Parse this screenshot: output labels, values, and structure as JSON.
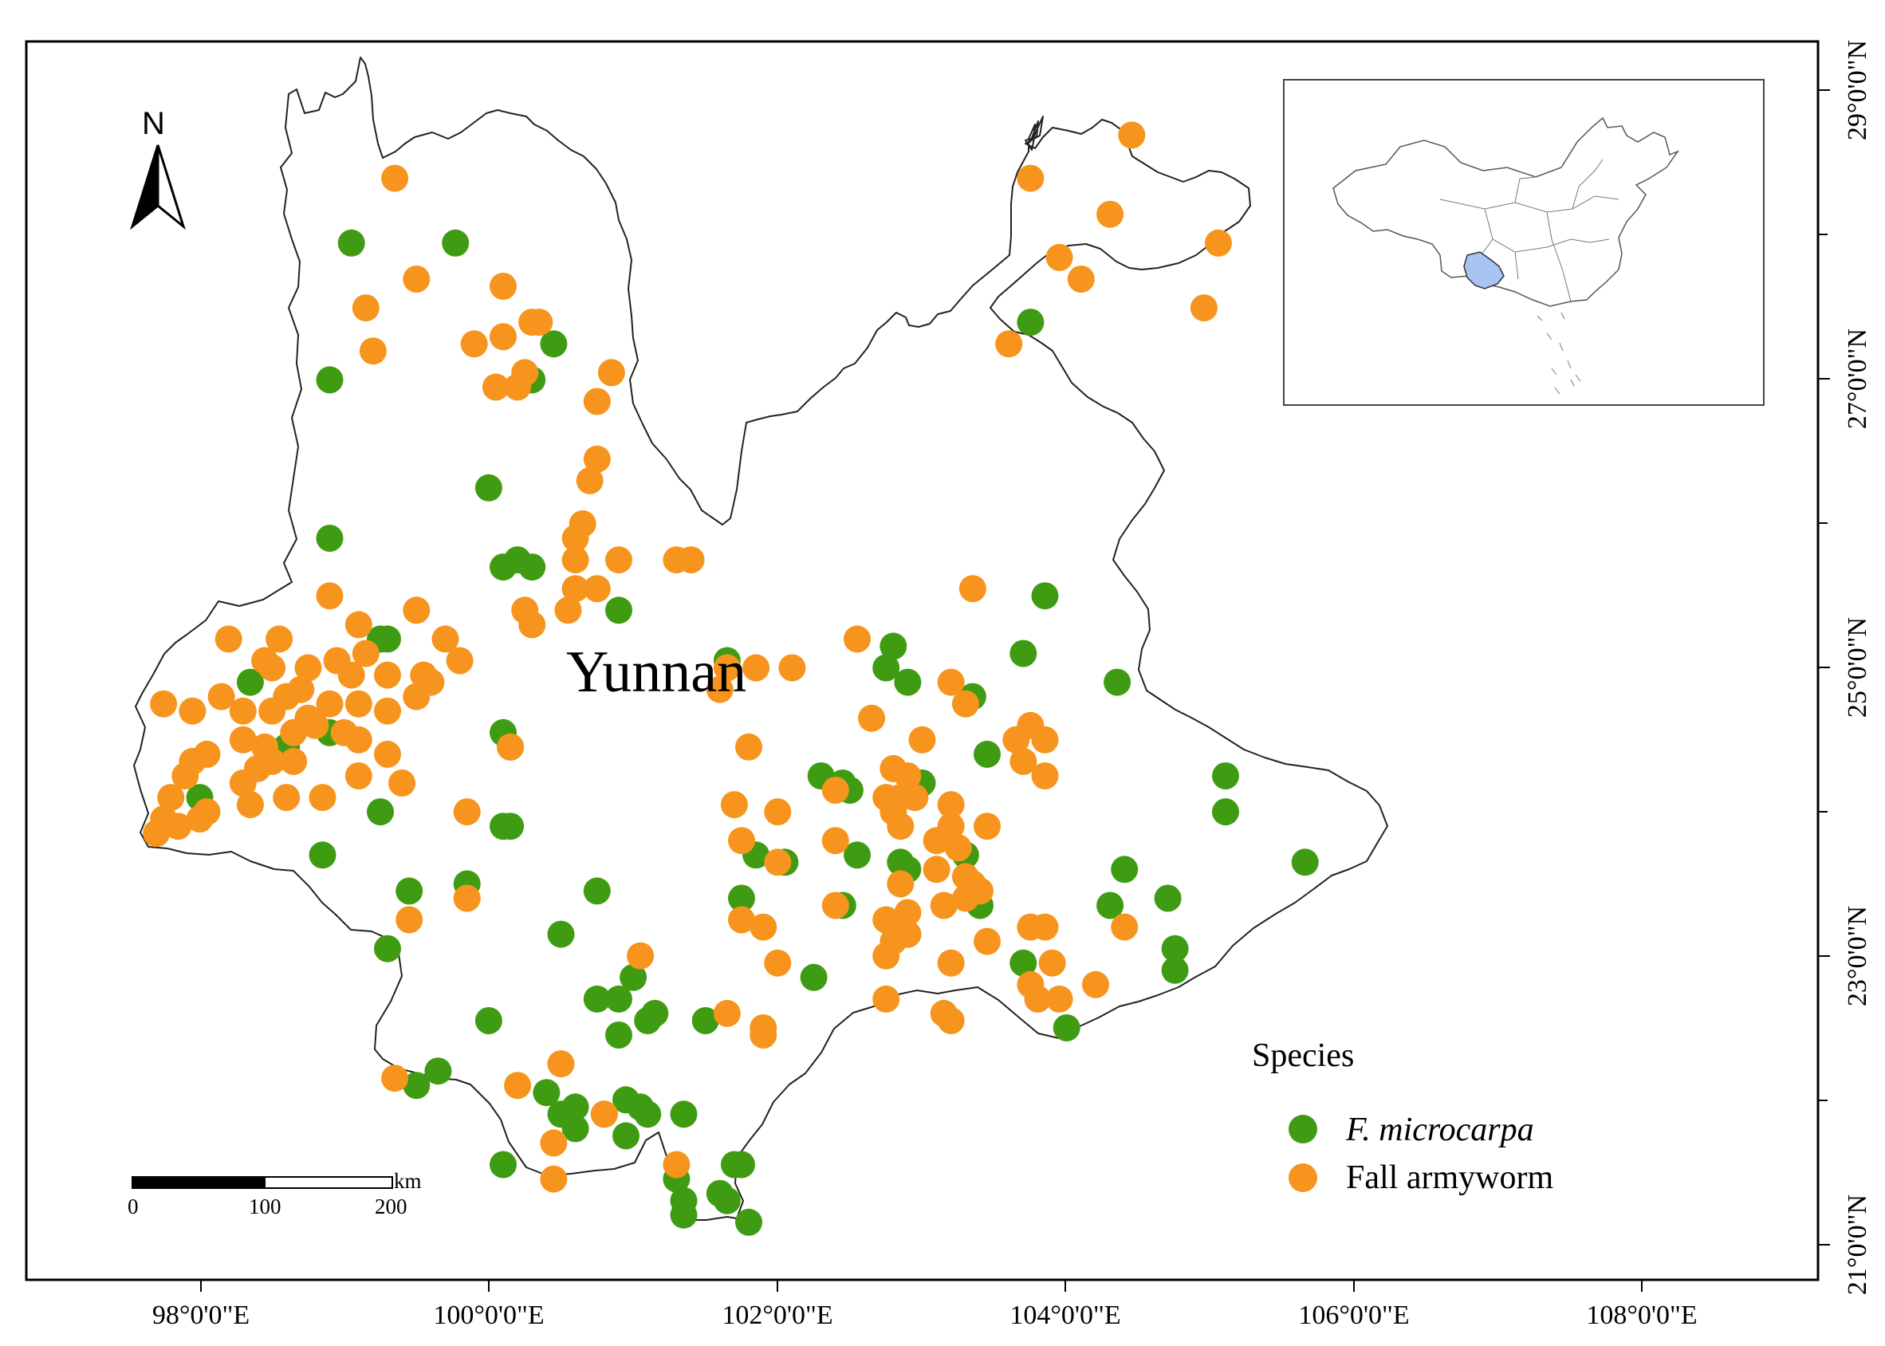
{
  "region_label": "Yunnan",
  "north_label": "N",
  "legend": {
    "title": "Species",
    "items": [
      {
        "label": "F. microcarpa",
        "italic": true,
        "color": "#3f9c12"
      },
      {
        "label": "Fall armyworm",
        "italic": false,
        "color": "#f7941d"
      }
    ]
  },
  "scale_bar": {
    "unit": "km",
    "ticks": [
      "0",
      "100",
      "200"
    ]
  },
  "x_axis_labels": [
    "98°0'0\"E",
    "100°0'0\"E",
    "102°0'0\"E",
    "104°0'0\"E",
    "106°0'0\"E",
    "108°0'0\"E"
  ],
  "y_axis_labels": [
    "29°0'0\"N",
    "27°0'0\"N",
    "25°0'0\"N",
    "23°0'0\"N",
    "21°0'0\"N"
  ],
  "chart_data": {
    "type": "scatter",
    "title": "",
    "xlabel": "",
    "ylabel": "",
    "xlim": [
      96.75,
      109.15
    ],
    "ylim": [
      20.8,
      29.4
    ],
    "series": [
      {
        "name": "F. microcarpa",
        "color": "#3f9c12",
        "points": [
          [
            99.0,
            28.0
          ],
          [
            99.72,
            28.0
          ],
          [
            98.85,
            27.05
          ],
          [
            100.4,
            27.3
          ],
          [
            100.25,
            27.05
          ],
          [
            103.7,
            27.45
          ],
          [
            99.95,
            26.3
          ],
          [
            98.85,
            25.95
          ],
          [
            100.15,
            25.8
          ],
          [
            100.05,
            25.75
          ],
          [
            100.25,
            25.75
          ],
          [
            100.85,
            25.45
          ],
          [
            98.3,
            24.95
          ],
          [
            98.55,
            24.5
          ],
          [
            98.85,
            24.6
          ],
          [
            99.2,
            25.25
          ],
          [
            99.25,
            25.25
          ],
          [
            100.05,
            24.6
          ],
          [
            100.1,
            24.5
          ],
          [
            97.95,
            24.15
          ],
          [
            99.2,
            24.05
          ],
          [
            100.05,
            23.95
          ],
          [
            100.1,
            23.95
          ],
          [
            98.8,
            23.75
          ],
          [
            99.4,
            23.5
          ],
          [
            99.8,
            23.55
          ],
          [
            99.25,
            23.1
          ],
          [
            100.45,
            23.2
          ],
          [
            100.7,
            23.5
          ],
          [
            103.8,
            25.55
          ],
          [
            103.65,
            25.15
          ],
          [
            104.3,
            24.95
          ],
          [
            102.7,
            25.05
          ],
          [
            102.75,
            25.2
          ],
          [
            102.85,
            24.95
          ],
          [
            103.3,
            24.85
          ],
          [
            102.25,
            24.3
          ],
          [
            102.4,
            24.25
          ],
          [
            102.45,
            24.2
          ],
          [
            102.95,
            24.25
          ],
          [
            103.4,
            24.45
          ],
          [
            102.5,
            23.75
          ],
          [
            102.8,
            23.7
          ],
          [
            102.85,
            23.65
          ],
          [
            103.25,
            23.75
          ],
          [
            101.8,
            23.75
          ],
          [
            102.0,
            23.7
          ],
          [
            101.7,
            23.45
          ],
          [
            102.4,
            23.4
          ],
          [
            103.35,
            23.4
          ],
          [
            102.85,
            23.2
          ],
          [
            102.2,
            22.9
          ],
          [
            103.65,
            23.0
          ],
          [
            103.95,
            22.55
          ],
          [
            104.25,
            23.4
          ],
          [
            104.35,
            23.65
          ],
          [
            104.65,
            23.45
          ],
          [
            104.7,
            23.1
          ],
          [
            104.7,
            22.95
          ],
          [
            105.05,
            24.3
          ],
          [
            105.05,
            24.05
          ],
          [
            105.6,
            23.7
          ],
          [
            99.45,
            22.15
          ],
          [
            99.6,
            22.25
          ],
          [
            99.95,
            22.6
          ],
          [
            100.7,
            22.75
          ],
          [
            100.85,
            22.5
          ],
          [
            100.85,
            22.75
          ],
          [
            100.95,
            22.9
          ],
          [
            101.05,
            22.6
          ],
          [
            101.1,
            22.65
          ],
          [
            101.45,
            22.6
          ],
          [
            100.35,
            22.1
          ],
          [
            100.45,
            21.95
          ],
          [
            100.55,
            22.0
          ],
          [
            100.55,
            21.85
          ],
          [
            100.75,
            21.95
          ],
          [
            100.9,
            22.05
          ],
          [
            101.0,
            22.0
          ],
          [
            101.05,
            21.95
          ],
          [
            100.9,
            21.8
          ],
          [
            100.05,
            21.6
          ],
          [
            101.25,
            21.5
          ],
          [
            101.3,
            21.35
          ],
          [
            101.3,
            21.25
          ],
          [
            101.55,
            21.4
          ],
          [
            101.6,
            21.35
          ],
          [
            101.65,
            21.6
          ],
          [
            101.7,
            21.6
          ],
          [
            101.75,
            21.2
          ],
          [
            101.3,
            21.95
          ],
          [
            101.6,
            25.1
          ]
        ]
      },
      {
        "name": "Fall armyworm",
        "color": "#f7941d",
        "points": [
          [
            99.3,
            28.45
          ],
          [
            99.45,
            27.75
          ],
          [
            99.1,
            27.55
          ],
          [
            99.15,
            27.25
          ],
          [
            100.05,
            27.7
          ],
          [
            100.25,
            27.45
          ],
          [
            100.3,
            27.45
          ],
          [
            99.85,
            27.3
          ],
          [
            100.05,
            27.35
          ],
          [
            100.0,
            27.0
          ],
          [
            100.15,
            27.0
          ],
          [
            100.2,
            27.1
          ],
          [
            100.8,
            27.1
          ],
          [
            100.7,
            26.9
          ],
          [
            100.7,
            26.5
          ],
          [
            100.65,
            26.35
          ],
          [
            100.6,
            26.05
          ],
          [
            100.55,
            25.95
          ],
          [
            100.55,
            25.8
          ],
          [
            100.85,
            25.8
          ],
          [
            100.55,
            25.6
          ],
          [
            100.7,
            25.6
          ],
          [
            100.5,
            25.45
          ],
          [
            100.2,
            25.45
          ],
          [
            100.25,
            25.35
          ],
          [
            101.25,
            25.8
          ],
          [
            101.35,
            25.8
          ],
          [
            103.7,
            28.45
          ],
          [
            104.4,
            28.75
          ],
          [
            104.25,
            28.2
          ],
          [
            103.9,
            27.9
          ],
          [
            104.05,
            27.75
          ],
          [
            105.0,
            28.0
          ],
          [
            104.9,
            27.55
          ],
          [
            103.55,
            27.3
          ],
          [
            98.85,
            25.55
          ],
          [
            99.45,
            25.45
          ],
          [
            99.05,
            25.35
          ],
          [
            99.65,
            25.25
          ],
          [
            99.75,
            25.1
          ],
          [
            98.15,
            25.25
          ],
          [
            98.5,
            25.25
          ],
          [
            98.4,
            25.1
          ],
          [
            98.45,
            25.05
          ],
          [
            98.65,
            24.9
          ],
          [
            98.7,
            25.05
          ],
          [
            98.9,
            25.1
          ],
          [
            99.1,
            25.15
          ],
          [
            99.25,
            25.0
          ],
          [
            99.5,
            25.0
          ],
          [
            99.55,
            24.95
          ],
          [
            99.45,
            24.85
          ],
          [
            97.7,
            24.8
          ],
          [
            97.9,
            24.75
          ],
          [
            98.1,
            24.85
          ],
          [
            98.25,
            24.75
          ],
          [
            98.45,
            24.75
          ],
          [
            98.55,
            24.85
          ],
          [
            98.7,
            24.7
          ],
          [
            98.85,
            24.8
          ],
          [
            99.05,
            24.8
          ],
          [
            99.25,
            24.75
          ],
          [
            98.25,
            24.55
          ],
          [
            98.4,
            24.5
          ],
          [
            98.6,
            24.6
          ],
          [
            98.75,
            24.65
          ],
          [
            98.95,
            24.6
          ],
          [
            99.05,
            24.55
          ],
          [
            99.25,
            24.45
          ],
          [
            97.9,
            24.4
          ],
          [
            98.0,
            24.45
          ],
          [
            98.25,
            24.25
          ],
          [
            98.45,
            24.4
          ],
          [
            98.6,
            24.4
          ],
          [
            99.05,
            24.3
          ],
          [
            99.35,
            24.25
          ],
          [
            97.85,
            24.3
          ],
          [
            97.75,
            24.15
          ],
          [
            98.0,
            24.05
          ],
          [
            98.3,
            24.1
          ],
          [
            98.55,
            24.15
          ],
          [
            98.8,
            24.15
          ],
          [
            97.7,
            24.0
          ],
          [
            97.8,
            23.95
          ],
          [
            97.95,
            24.0
          ],
          [
            97.65,
            23.9
          ],
          [
            99.8,
            24.05
          ],
          [
            100.1,
            24.5
          ],
          [
            99.4,
            23.3
          ],
          [
            99.8,
            23.45
          ],
          [
            101.6,
            25.05
          ],
          [
            101.55,
            24.9
          ],
          [
            101.8,
            25.05
          ],
          [
            102.05,
            25.05
          ],
          [
            102.5,
            25.25
          ],
          [
            102.6,
            24.7
          ],
          [
            102.95,
            24.55
          ],
          [
            103.15,
            24.95
          ],
          [
            103.3,
            25.6
          ],
          [
            103.25,
            24.8
          ],
          [
            103.6,
            24.55
          ],
          [
            103.7,
            24.65
          ],
          [
            103.8,
            24.55
          ],
          [
            103.65,
            24.4
          ],
          [
            103.8,
            24.3
          ],
          [
            102.75,
            24.35
          ],
          [
            102.85,
            24.3
          ],
          [
            102.7,
            24.15
          ],
          [
            102.8,
            24.15
          ],
          [
            102.75,
            24.05
          ],
          [
            102.8,
            23.95
          ],
          [
            102.9,
            24.15
          ],
          [
            103.15,
            24.1
          ],
          [
            103.15,
            23.95
          ],
          [
            103.4,
            23.95
          ],
          [
            103.05,
            23.85
          ],
          [
            103.2,
            23.8
          ],
          [
            103.05,
            23.65
          ],
          [
            102.8,
            23.55
          ],
          [
            103.25,
            23.6
          ],
          [
            103.3,
            23.55
          ],
          [
            103.35,
            23.5
          ],
          [
            103.25,
            23.45
          ],
          [
            103.1,
            23.4
          ],
          [
            102.85,
            23.35
          ],
          [
            102.7,
            23.3
          ],
          [
            102.75,
            23.15
          ],
          [
            102.85,
            23.2
          ],
          [
            102.7,
            23.05
          ],
          [
            103.15,
            23.0
          ],
          [
            103.4,
            23.15
          ],
          [
            103.7,
            23.25
          ],
          [
            103.8,
            23.25
          ],
          [
            103.7,
            22.85
          ],
          [
            103.85,
            23.0
          ],
          [
            103.75,
            22.75
          ],
          [
            103.9,
            22.75
          ],
          [
            104.15,
            22.85
          ],
          [
            104.35,
            23.25
          ],
          [
            102.35,
            24.2
          ],
          [
            101.75,
            24.5
          ],
          [
            101.65,
            24.1
          ],
          [
            101.95,
            24.05
          ],
          [
            101.7,
            23.85
          ],
          [
            102.35,
            23.85
          ],
          [
            102.35,
            23.4
          ],
          [
            101.7,
            23.3
          ],
          [
            101.85,
            23.25
          ],
          [
            101.95,
            23.0
          ],
          [
            102.7,
            22.75
          ],
          [
            103.1,
            22.65
          ],
          [
            103.15,
            22.6
          ],
          [
            101.6,
            22.65
          ],
          [
            101.85,
            22.5
          ],
          [
            101.85,
            22.55
          ],
          [
            101.0,
            23.05
          ],
          [
            100.45,
            22.3
          ],
          [
            100.15,
            22.15
          ],
          [
            99.3,
            22.2
          ],
          [
            100.4,
            21.75
          ],
          [
            100.4,
            21.5
          ],
          [
            101.25,
            21.6
          ],
          [
            100.75,
            21.95
          ],
          [
            99.8,
            23.45
          ],
          [
            99.0,
            25.0
          ],
          [
            98.35,
            24.35
          ],
          [
            101.95,
            23.7
          ]
        ]
      }
    ]
  }
}
